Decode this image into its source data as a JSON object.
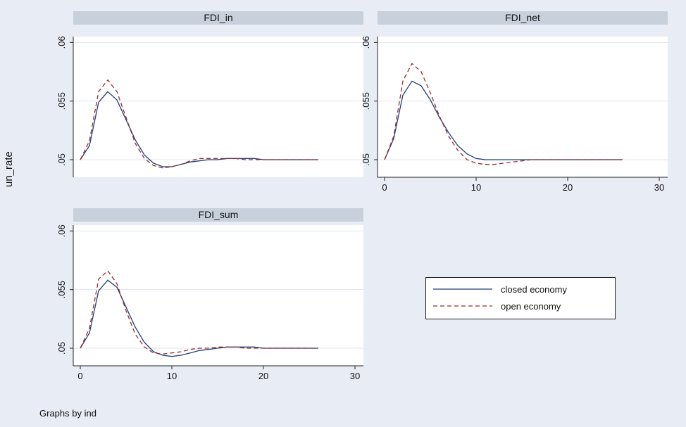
{
  "chart_data": {
    "type": "line",
    "ylabel": "un_rate",
    "caption": "Graphs by ind",
    "xlim": [
      0,
      30
    ],
    "ylim": [
      0.0485,
      0.0605
    ],
    "xticks": [
      0,
      10,
      20,
      30
    ],
    "xtick_labels": [
      "0",
      "10",
      "20",
      "30"
    ],
    "yticks": [
      0.05,
      0.055,
      0.06
    ],
    "ytick_labels": [
      ".05",
      ".055",
      ".06"
    ],
    "grid": true,
    "legend": {
      "placement": "bottom-right",
      "entries": [
        {
          "label": "closed economy",
          "color": "#1f3f7a",
          "dash": "solid"
        },
        {
          "label": "open economy",
          "color": "#9b2b2b",
          "dash": "dashed"
        }
      ]
    },
    "panels": [
      {
        "title": "FDI_in",
        "show_x_axis": false,
        "series": [
          {
            "name": "closed economy",
            "x": [
              0,
              1,
              2,
              3,
              4,
              5,
              6,
              7,
              8,
              9,
              10,
              11,
              12,
              13,
              14,
              15,
              16,
              17,
              18,
              19,
              20,
              21,
              22,
              23,
              24,
              25,
              26
            ],
            "y": [
              0.05,
              0.0512,
              0.0549,
              0.0558,
              0.0551,
              0.0534,
              0.0517,
              0.0504,
              0.0497,
              0.0494,
              0.0494,
              0.0496,
              0.0498,
              0.0499,
              0.05,
              0.05,
              0.0501,
              0.0501,
              0.0501,
              0.0501,
              0.05,
              0.05,
              0.05,
              0.05,
              0.05,
              0.05,
              0.05
            ]
          },
          {
            "name": "open economy",
            "x": [
              0,
              1,
              2,
              3,
              4,
              5,
              6,
              7,
              8,
              9,
              10,
              11,
              12,
              13,
              14,
              15,
              16,
              17,
              18,
              19,
              20,
              21,
              22,
              23,
              24,
              25,
              26
            ],
            "y": [
              0.05,
              0.0516,
              0.0558,
              0.0568,
              0.0558,
              0.0536,
              0.0514,
              0.0501,
              0.0495,
              0.0493,
              0.0494,
              0.0496,
              0.0499,
              0.0501,
              0.0501,
              0.0501,
              0.0501,
              0.0501,
              0.05,
              0.05,
              0.05,
              0.05,
              0.05,
              0.05,
              0.05,
              0.05,
              0.05
            ]
          }
        ]
      },
      {
        "title": "FDI_net",
        "show_x_axis": true,
        "series": [
          {
            "name": "closed economy",
            "x": [
              0,
              1,
              2,
              3,
              4,
              5,
              6,
              7,
              8,
              9,
              10,
              11,
              12,
              13,
              14,
              15,
              16,
              17,
              18,
              19,
              20,
              21,
              22,
              23,
              24,
              25,
              26
            ],
            "y": [
              0.05,
              0.0518,
              0.0555,
              0.0567,
              0.0563,
              0.0551,
              0.0536,
              0.0523,
              0.0512,
              0.0505,
              0.0501,
              0.05,
              0.05,
              0.05,
              0.05,
              0.05,
              0.05,
              0.05,
              0.05,
              0.05,
              0.05,
              0.05,
              0.05,
              0.05,
              0.05,
              0.05,
              0.05
            ]
          },
          {
            "name": "open economy",
            "x": [
              0,
              1,
              2,
              3,
              4,
              5,
              6,
              7,
              8,
              9,
              10,
              11,
              12,
              13,
              14,
              15,
              16,
              17,
              18,
              19,
              20,
              21,
              22,
              23,
              24,
              25,
              26
            ],
            "y": [
              0.05,
              0.052,
              0.0567,
              0.0582,
              0.0575,
              0.0557,
              0.0537,
              0.052,
              0.0508,
              0.05,
              0.0497,
              0.0496,
              0.0496,
              0.0497,
              0.0498,
              0.0499,
              0.05,
              0.05,
              0.05,
              0.05,
              0.05,
              0.05,
              0.05,
              0.05,
              0.05,
              0.05,
              0.05
            ]
          }
        ]
      },
      {
        "title": "FDI_sum",
        "show_x_axis": true,
        "series": [
          {
            "name": "closed economy",
            "x": [
              0,
              1,
              2,
              3,
              4,
              5,
              6,
              7,
              8,
              9,
              10,
              11,
              12,
              13,
              14,
              15,
              16,
              17,
              18,
              19,
              20,
              21,
              22,
              23,
              24,
              25,
              26
            ],
            "y": [
              0.05,
              0.0513,
              0.0549,
              0.0558,
              0.0552,
              0.0535,
              0.0518,
              0.0505,
              0.0497,
              0.0494,
              0.0493,
              0.0494,
              0.0496,
              0.0498,
              0.0499,
              0.05,
              0.0501,
              0.0501,
              0.0501,
              0.0501,
              0.05,
              0.05,
              0.05,
              0.05,
              0.05,
              0.05,
              0.05
            ]
          },
          {
            "name": "open economy",
            "x": [
              0,
              1,
              2,
              3,
              4,
              5,
              6,
              7,
              8,
              9,
              10,
              11,
              12,
              13,
              14,
              15,
              16,
              17,
              18,
              19,
              20,
              21,
              22,
              23,
              24,
              25,
              26
            ],
            "y": [
              0.05,
              0.0517,
              0.0559,
              0.0566,
              0.0555,
              0.0532,
              0.0512,
              0.0501,
              0.0496,
              0.0495,
              0.0496,
              0.0497,
              0.0499,
              0.05,
              0.05,
              0.0501,
              0.0501,
              0.0501,
              0.05,
              0.05,
              0.05,
              0.05,
              0.05,
              0.05,
              0.05,
              0.05,
              0.05
            ]
          }
        ]
      }
    ]
  }
}
